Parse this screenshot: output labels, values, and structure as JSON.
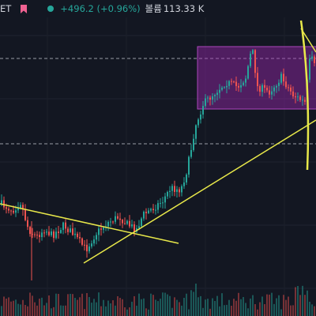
{
  "header": {
    "symbol_fragment": "ET",
    "change_text": "+496.2 (+0.96%)",
    "volume_label": "볼륨",
    "volume_value": "113.33 K"
  },
  "colors": {
    "background": "#131722",
    "up": "#26a69a",
    "down": "#ef5350",
    "trendline": "#e8e84a",
    "range_box": "#9c27b0",
    "dashed_line": "#b2b5be",
    "flag_pink": "#f06292"
  },
  "chart_data": {
    "type": "candlestick",
    "title": "",
    "xlabel": "",
    "ylabel": "",
    "grid": true,
    "annotations": [
      "rectangle (consolidation range)",
      "descending trendline",
      "ascending trendline",
      "vertical marker line"
    ]
  }
}
